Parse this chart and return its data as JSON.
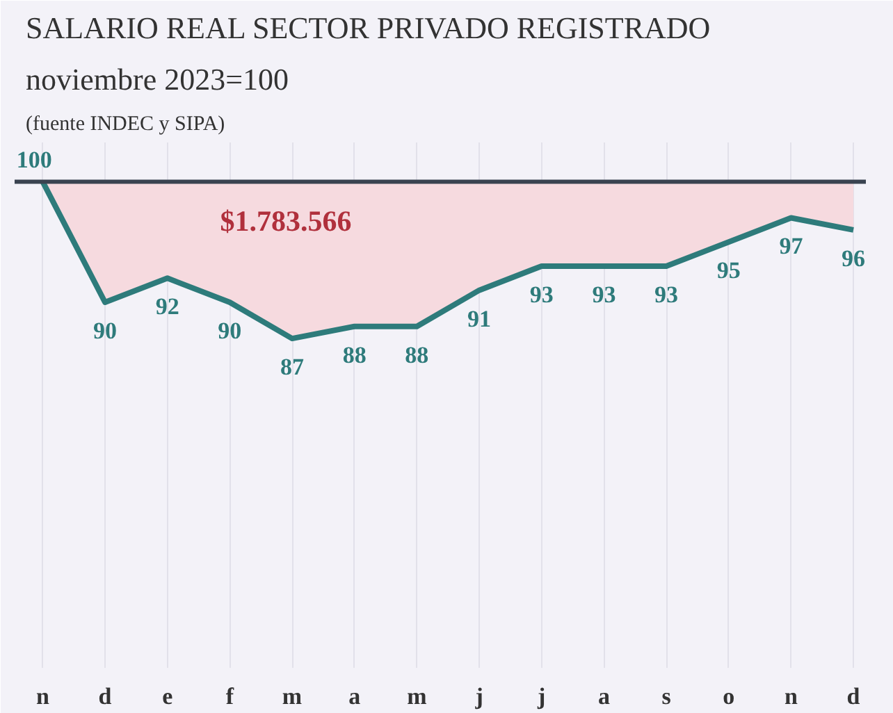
{
  "chart_data": {
    "type": "line",
    "title": "SALARIO REAL SECTOR PRIVADO REGISTRADO",
    "subtitle": "noviembre 2023=100",
    "annotations": [
      "(fuente INDEC y SIPA)",
      "$1.783.566"
    ],
    "categories": [
      "n",
      "d",
      "e",
      "f",
      "m",
      "a",
      "m",
      "j",
      "j",
      "a",
      "s",
      "o",
      "n",
      "d"
    ],
    "series": [
      {
        "color": "#2e7b7b",
        "values": [
          100,
          90,
          92,
          90,
          87,
          88,
          88,
          91,
          93,
          93,
          93,
          95,
          97,
          96
        ]
      }
    ],
    "ref_lines": [
      {
        "axis": "y",
        "value": 100,
        "color": "#3a4350"
      }
    ],
    "data_labels": true,
    "grid": "x",
    "marker": "none",
    "line_style": "solid"
  }
}
